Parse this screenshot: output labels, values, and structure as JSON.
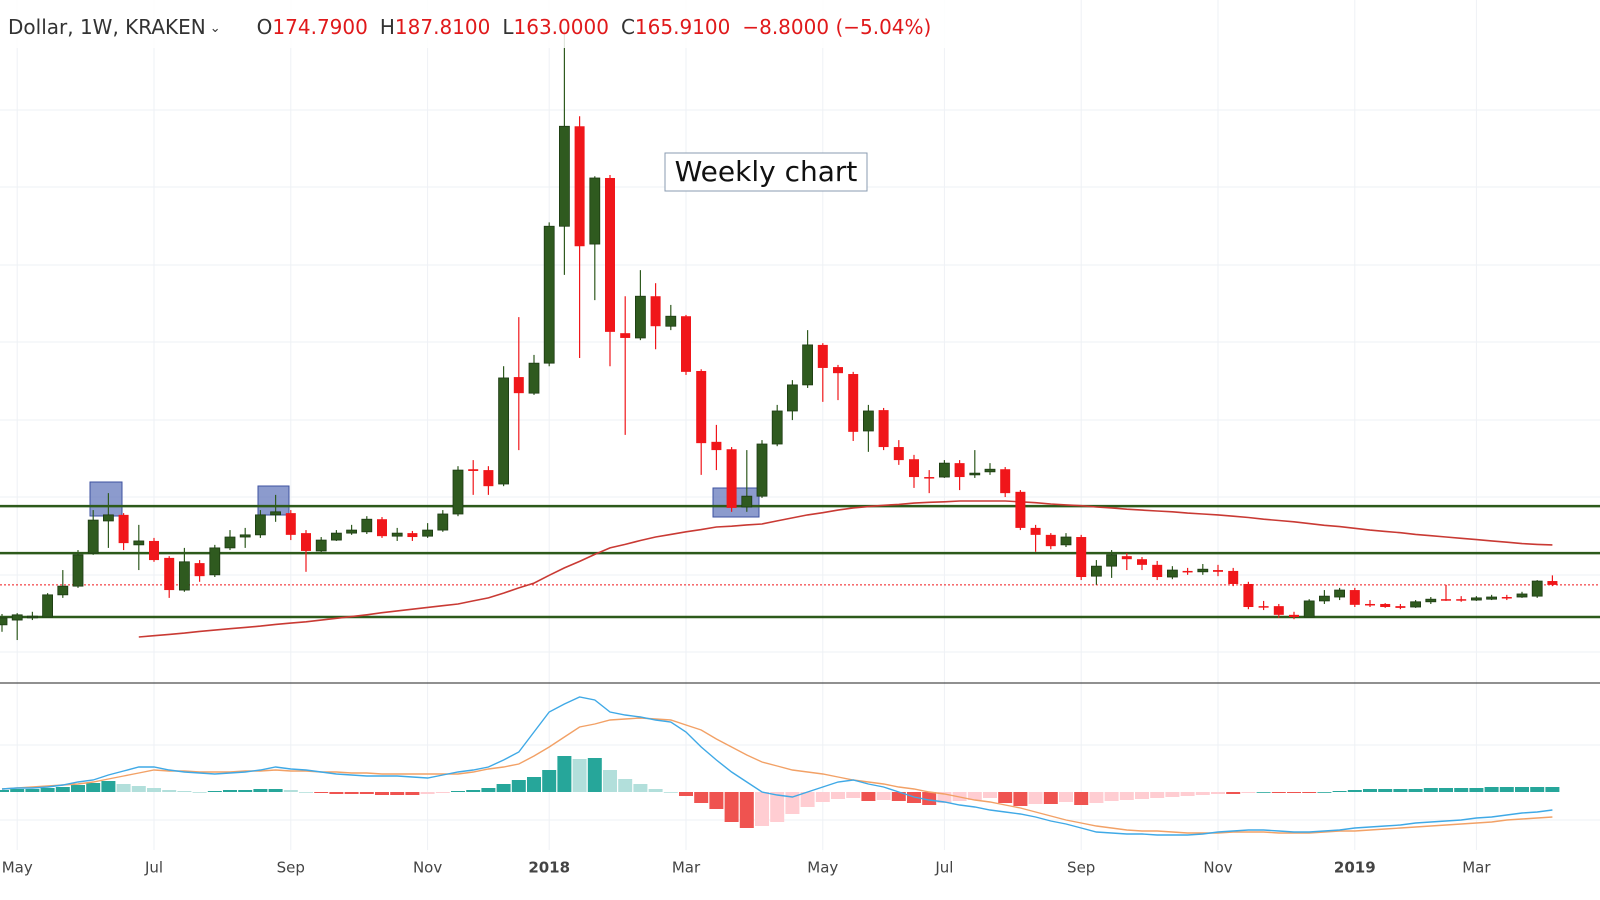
{
  "chart_data": {
    "type": "candlestick",
    "header": {
      "symbol": "Dollar, 1W, KRAKEN",
      "ohlc": [
        {
          "label": "O",
          "value": "174.7900"
        },
        {
          "label": "H",
          "value": "187.8100"
        },
        {
          "label": "L",
          "value": "163.0000"
        },
        {
          "label": "C",
          "value": "165.9100"
        }
      ],
      "change": "−8.8000 (−5.04%)"
    },
    "annotation": "Weekly chart",
    "categories": [
      null,
      "May",
      null,
      null,
      null,
      null,
      null,
      null,
      null,
      null,
      "Jul",
      null,
      null,
      null,
      null,
      null,
      null,
      null,
      null,
      "Sep",
      null,
      null,
      null,
      null,
      null,
      null,
      null,
      null,
      "Nov",
      null,
      null,
      null,
      null,
      null,
      null,
      null,
      "2018",
      null,
      null,
      null,
      null,
      null,
      null,
      null,
      null,
      "Mar",
      null,
      null,
      null,
      null,
      null,
      null,
      null,
      null,
      "May",
      null,
      null,
      null,
      null,
      null,
      null,
      null,
      "Jul",
      null,
      null,
      null,
      null,
      null,
      null,
      null,
      null,
      "Sep",
      null,
      null,
      null,
      null,
      null,
      null,
      null,
      null,
      "Nov",
      null,
      null,
      null,
      null,
      null,
      null,
      null,
      null,
      "2019",
      null,
      null,
      null,
      null,
      null,
      null,
      null,
      "Mar",
      null,
      null,
      null,
      null,
      null
    ],
    "ylim": [
      0,
      1500
    ],
    "up_color": "#2f5a1f",
    "down_color": "#f0161a",
    "open": [
      74,
      85,
      90,
      92,
      143,
      163,
      239,
      313,
      327,
      258,
      267,
      228,
      154,
      216,
      189,
      251,
      276,
      281,
      327,
      331,
      285,
      244,
      269,
      285,
      288,
      317,
      278,
      285,
      278,
      292,
      329,
      432,
      430,
      398,
      644,
      607,
      676,
      991,
      1221,
      950,
      1102,
      745,
      734,
      830,
      761,
      784,
      658,
      495,
      478,
      345,
      370,
      490,
      566,
      626,
      718,
      667,
      651,
      520,
      568,
      483,
      455,
      414,
      414,
      446,
      419,
      426,
      432,
      380,
      297,
      281,
      258,
      276,
      186,
      209,
      232,
      225,
      212,
      184,
      198,
      196,
      200,
      198,
      168,
      117,
      117,
      97,
      92,
      129,
      138,
      154,
      122,
      122,
      117,
      115,
      127,
      133,
      133,
      131,
      133,
      138,
      138,
      140,
      174.79
    ],
    "high": [
      99,
      101,
      104,
      147,
      200,
      246,
      338,
      377,
      331,
      304,
      274,
      232,
      251,
      223,
      258,
      292,
      297,
      338,
      373,
      338,
      292,
      276,
      292,
      304,
      324,
      322,
      297,
      290,
      308,
      338,
      439,
      453,
      439,
      669,
      782,
      695,
      1000,
      1442,
      1244,
      1106,
      1109,
      830,
      890,
      860,
      810,
      787,
      662,
      534,
      483,
      476,
      499,
      580,
      637,
      752,
      722,
      672,
      656,
      580,
      573,
      499,
      465,
      430,
      453,
      453,
      476,
      446,
      437,
      384,
      304,
      285,
      285,
      281,
      223,
      246,
      239,
      230,
      221,
      209,
      205,
      214,
      212,
      205,
      173,
      129,
      122,
      104,
      133,
      154,
      159,
      159,
      131,
      124,
      122,
      131,
      138,
      166,
      140,
      140,
      143,
      143,
      150,
      177,
      187.81
    ],
    "low": [
      58,
      39,
      85,
      90,
      136,
      159,
      235,
      251,
      246,
      200,
      219,
      136,
      150,
      173,
      184,
      246,
      251,
      274,
      311,
      269,
      196,
      239,
      267,
      281,
      283,
      274,
      267,
      267,
      274,
      288,
      324,
      373,
      373,
      393,
      476,
      603,
      669,
      879,
      688,
      821,
      669,
      511,
      729,
      708,
      752,
      649,
      419,
      430,
      334,
      334,
      366,
      485,
      545,
      619,
      587,
      591,
      497,
      472,
      476,
      442,
      389,
      377,
      412,
      384,
      412,
      419,
      368,
      292,
      242,
      248,
      253,
      177,
      166,
      182,
      200,
      200,
      177,
      179,
      189,
      189,
      186,
      163,
      110,
      108,
      90,
      87,
      90,
      122,
      131,
      115,
      115,
      113,
      110,
      113,
      122,
      129,
      127,
      129,
      131,
      131,
      136,
      136,
      163
    ],
    "close": [
      90,
      97,
      94,
      143,
      163,
      235,
      315,
      327,
      262,
      267,
      223,
      154,
      219,
      186,
      251,
      276,
      281,
      327,
      334,
      281,
      244,
      269,
      285,
      292,
      317,
      278,
      285,
      276,
      292,
      329,
      430,
      428,
      393,
      642,
      607,
      676,
      991,
      1221,
      945,
      1102,
      748,
      734,
      830,
      761,
      784,
      656,
      492,
      476,
      343,
      370,
      490,
      566,
      626,
      718,
      665,
      653,
      518,
      566,
      483,
      453,
      414,
      412,
      446,
      414,
      423,
      432,
      377,
      297,
      281,
      255,
      276,
      184,
      209,
      235,
      225,
      212,
      184,
      200,
      196,
      202,
      196,
      168,
      115,
      115,
      97,
      92,
      129,
      140,
      154,
      120,
      120,
      115,
      113,
      127,
      133,
      131,
      131,
      136,
      138,
      136,
      145,
      174.71,
      165.91
    ],
    "ma": {
      "color": "#c93a34",
      "values": [
        null,
        null,
        null,
        null,
        null,
        null,
        null,
        null,
        null,
        46,
        49,
        52,
        55,
        59,
        62,
        65,
        68,
        71,
        75,
        78,
        81,
        85,
        89,
        93,
        97,
        102,
        106,
        110,
        114,
        118,
        122,
        129,
        136,
        147,
        159,
        170,
        188,
        205,
        220,
        236,
        251,
        259,
        268,
        276,
        282,
        288,
        293,
        299,
        301,
        304,
        306,
        313,
        320,
        327,
        332,
        338,
        343,
        346,
        349,
        351,
        354,
        356,
        357,
        359,
        359,
        359,
        359,
        357,
        355,
        352,
        350,
        348,
        345,
        343,
        340,
        338,
        336,
        334,
        331,
        329,
        327,
        324,
        321,
        317,
        314,
        311,
        307,
        303,
        300,
        296,
        292,
        289,
        286,
        282,
        279,
        276,
        273,
        270,
        267,
        264,
        261,
        259,
        258
      ]
    },
    "levels": {
      "color": "#2d5a1b",
      "values": [
        347,
        239,
        92
      ]
    },
    "macd": {
      "ylim": [
        -45,
        105
      ],
      "histogram": {
        "colors": {
          "up_grow": "#26a69a",
          "up_fall": "#b2dfdb",
          "down_grow": "#ef5350",
          "down_fall": "#ffcdd2"
        },
        "values": [
          2,
          3,
          3,
          4,
          5,
          7,
          9,
          11,
          8,
          6,
          4,
          2,
          1,
          0,
          1,
          2,
          2,
          3,
          3,
          2,
          0,
          -1,
          -2,
          -2,
          -2,
          -3,
          -3,
          -3,
          -2,
          -1,
          1,
          2,
          4,
          8,
          12,
          15,
          22,
          36,
          33,
          34,
          22,
          13,
          8,
          3,
          0,
          -4,
          -11,
          -17,
          -30,
          -36,
          -34,
          -30,
          -22,
          -15,
          -10,
          -7,
          -6,
          -9,
          -8,
          -9,
          -11,
          -13,
          -11,
          -9,
          -8,
          -6,
          -11,
          -14,
          -12,
          -12,
          -10,
          -13,
          -11,
          -9,
          -8,
          -7,
          -6,
          -5,
          -4,
          -3,
          -2,
          -2,
          -1,
          0,
          -1,
          -1,
          -1,
          0,
          1,
          2,
          3,
          3,
          3,
          3,
          4,
          4,
          4,
          4,
          5,
          5,
          5,
          5,
          5
        ]
      },
      "macd_line": {
        "color": "#3fa9e6",
        "values": [
          3,
          4,
          4,
          5,
          7,
          10,
          12,
          17,
          21,
          25,
          25,
          22,
          20,
          19,
          18,
          19,
          20,
          22,
          25,
          23,
          22,
          20,
          18,
          17,
          16,
          16,
          16,
          15,
          14,
          17,
          20,
          22,
          25,
          32,
          40,
          60,
          80,
          88,
          95,
          92,
          80,
          77,
          75,
          72,
          70,
          60,
          45,
          32,
          20,
          10,
          0,
          -3,
          -5,
          0,
          5,
          10,
          12,
          8,
          5,
          0,
          -5,
          -8,
          -10,
          -13,
          -15,
          -18,
          -20,
          -22,
          -25,
          -29,
          -32,
          -36,
          -40,
          -41,
          -42,
          -42,
          -43,
          -43,
          -43,
          -42,
          -40,
          -39,
          -38,
          -38,
          -39,
          -40,
          -40,
          -39,
          -38,
          -36,
          -35,
          -34,
          -33,
          -31,
          -30,
          -29,
          -28,
          -26,
          -25,
          -23,
          -21,
          -20,
          -18
        ]
      },
      "signal_line": {
        "color": "#f2a166",
        "values": [
          3,
          4,
          5,
          6,
          7,
          8,
          10,
          13,
          16,
          19,
          22,
          21,
          21,
          20,
          20,
          20,
          21,
          21,
          22,
          21,
          21,
          20,
          20,
          19,
          19,
          18,
          18,
          18,
          18,
          18,
          18,
          20,
          23,
          25,
          28,
          36,
          45,
          55,
          65,
          68,
          72,
          73,
          74,
          73,
          72,
          67,
          62,
          53,
          45,
          37,
          30,
          26,
          22,
          20,
          18,
          15,
          12,
          10,
          8,
          5,
          3,
          0,
          -2,
          -5,
          -8,
          -10,
          -13,
          -16,
          -20,
          -24,
          -28,
          -31,
          -34,
          -36,
          -38,
          -39,
          -39,
          -40,
          -41,
          -41,
          -41,
          -40,
          -40,
          -40,
          -41,
          -41,
          -41,
          -40,
          -39,
          -39,
          -38,
          -37,
          -36,
          -35,
          -34,
          -33,
          -32,
          -31,
          -30,
          -28,
          -27,
          -26,
          -25
        ]
      }
    }
  }
}
